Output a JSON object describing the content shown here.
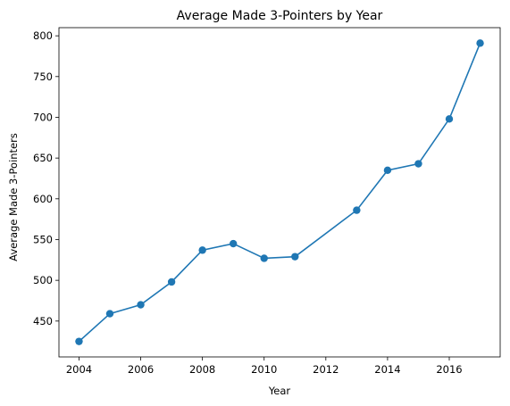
{
  "chart_data": {
    "type": "line",
    "title": "Average Made 3-Pointers by Year",
    "xlabel": "Year",
    "ylabel": "Average Made 3-Pointers",
    "x": [
      2004,
      2005,
      2006,
      2007,
      2008,
      2009,
      2010,
      2011,
      2013,
      2014,
      2015,
      2016,
      2017
    ],
    "series": [
      {
        "values": [
          425,
          459,
          470,
          498,
          537,
          545,
          527,
          529,
          586,
          635,
          643,
          698,
          791
        ]
      }
    ],
    "xticks": [
      2004,
      2006,
      2008,
      2010,
      2012,
      2014,
      2016
    ],
    "yticks": [
      450,
      500,
      550,
      600,
      650,
      700,
      750,
      800
    ],
    "xlim": [
      2003.35,
      2017.65
    ],
    "ylim": [
      406,
      810
    ],
    "grid": false,
    "legend": "none",
    "colors": {
      "line": "#1f77b4",
      "marker": "#1f77b4"
    }
  }
}
